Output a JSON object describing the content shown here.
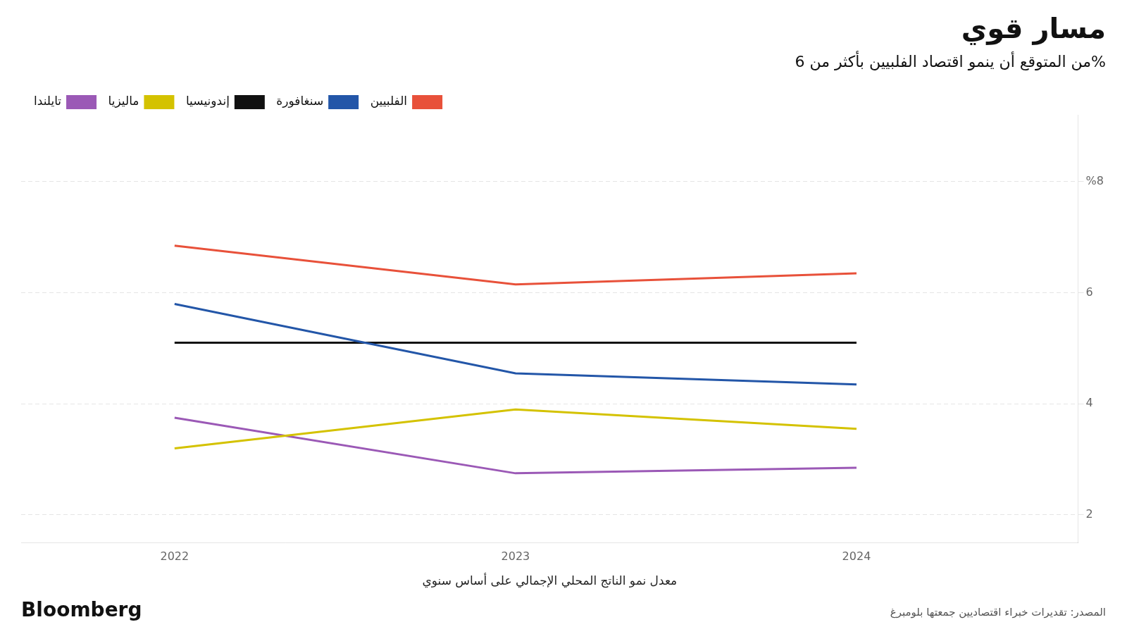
{
  "chart_data": {
    "type": "line",
    "title": "مسار قوي",
    "subtitle": "من المتوقع أن ينمو اقتصاد الفلبيين بأكثر من 6%",
    "xlabel": "معدل نمو الناتج المحلي الإجمالي على أساس سنوي",
    "annotations": [
      "Bloomberg",
      "المصدر: تقديرات خبراء اقتصاديين جمعتها بلومبرغ"
    ],
    "x": [
      2022,
      2023,
      2024
    ],
    "series": [
      {
        "name": "الفلبيين",
        "color": "#E8513A",
        "values": [
          6.85,
          6.15,
          6.35
        ]
      },
      {
        "name": "سنغافورة",
        "color": "#2356A8",
        "values": [
          5.8,
          4.55,
          4.35
        ]
      },
      {
        "name": "إندونيسيا",
        "color": "#111111",
        "values": [
          5.1,
          5.1,
          5.1
        ]
      },
      {
        "name": "ماليزيا",
        "color": "#D4C200",
        "values": [
          3.2,
          3.9,
          3.55
        ]
      },
      {
        "name": "تايلندا",
        "color": "#9B59B6",
        "values": [
          3.75,
          2.75,
          2.85
        ]
      }
    ],
    "xlim": [
      2021.55,
      2024.65
    ],
    "xticks": [
      2022,
      2023,
      2024
    ],
    "ylim": [
      1.5,
      9.2
    ],
    "yticks": [
      2,
      4,
      6,
      {
        "value": 8,
        "label": "%8"
      }
    ],
    "grid": "y",
    "legend": "top-right"
  }
}
